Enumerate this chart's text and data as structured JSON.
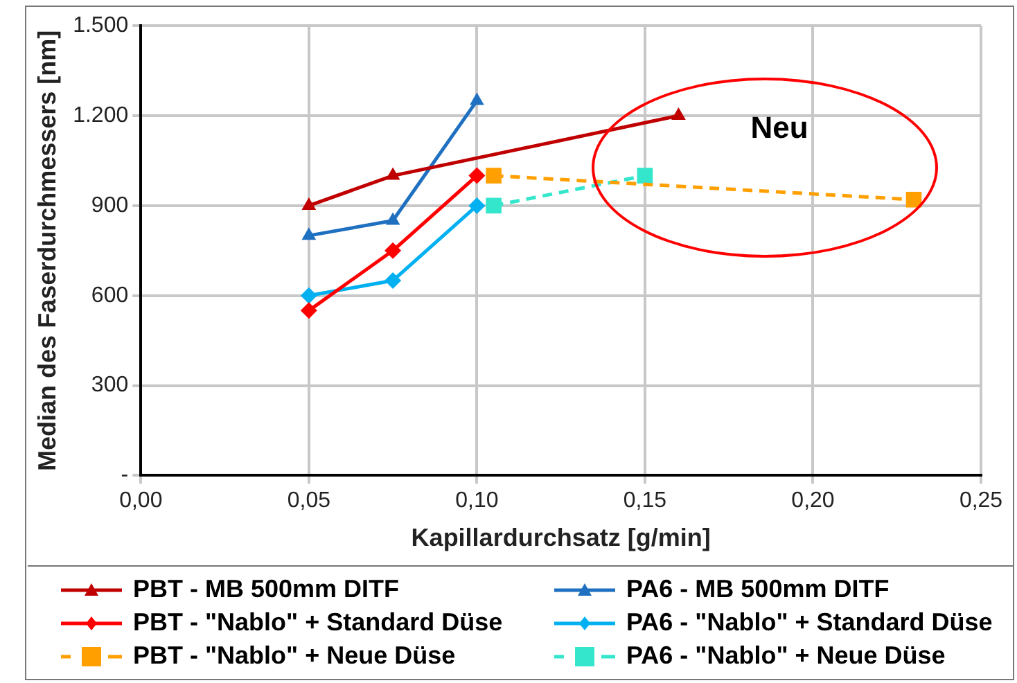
{
  "chart_data": {
    "type": "line",
    "xlabel": "Kapillardurchsatz [g/min]",
    "ylabel": "Median des Faserdurchmessers [nm]",
    "xlim": [
      0,
      0.25
    ],
    "xticks": [
      {
        "value": 0,
        "label": "0,00"
      },
      {
        "value": 0.05,
        "label": "0,05"
      },
      {
        "value": 0.1,
        "label": "0,10"
      },
      {
        "value": 0.15,
        "label": "0,15"
      },
      {
        "value": 0.2,
        "label": "0,20"
      },
      {
        "value": 0.25,
        "label": "0,25"
      }
    ],
    "ylim": [
      0,
      1500
    ],
    "yticks": [
      {
        "value": 0,
        "label": "-"
      },
      300,
      600,
      900,
      {
        "value": 1200,
        "label": "1.200"
      },
      {
        "value": 1500,
        "label": "1.500"
      }
    ],
    "grid": true,
    "legend": "bottom",
    "annotations": [
      "Neu"
    ],
    "series": [
      {
        "name": "PBT - MB 500mm DITF",
        "color": "#c00000",
        "marker": "triangle",
        "line_style": "solid",
        "x": [
          0.05,
          0.075,
          0.16
        ],
        "values": [
          900,
          1000,
          1200
        ]
      },
      {
        "name": "PA6 - MB 500mm DITF",
        "color": "#1f70c1",
        "marker": "triangle",
        "line_style": "solid",
        "x": [
          0.05,
          0.075,
          0.1
        ],
        "values": [
          800,
          850,
          1250
        ]
      },
      {
        "name": "PBT - \"Nablo\" + Standard Düse",
        "color": "#ff0000",
        "marker": "diamond",
        "line_style": "solid",
        "x": [
          0.05,
          0.075,
          0.1
        ],
        "values": [
          550,
          750,
          1000
        ]
      },
      {
        "name": "PA6 - \"Nablo\" + Standard Düse",
        "color": "#00b0f0",
        "marker": "diamond",
        "line_style": "solid",
        "x": [
          0.05,
          0.075,
          0.1
        ],
        "values": [
          600,
          650,
          900
        ]
      },
      {
        "name": "PBT - \"Nablo\" + Neue Düse",
        "color": "#ffa000",
        "marker": "square",
        "line_style": "dashed",
        "x": [
          0.105,
          0.23
        ],
        "values": [
          1000,
          920
        ]
      },
      {
        "name": "PA6 - \"Nablo\" + Neue Düse",
        "color": "#33e6cc",
        "marker": "square",
        "line_style": "dashed",
        "x": [
          0.105,
          0.15
        ],
        "values": [
          900,
          1000
        ]
      }
    ]
  }
}
